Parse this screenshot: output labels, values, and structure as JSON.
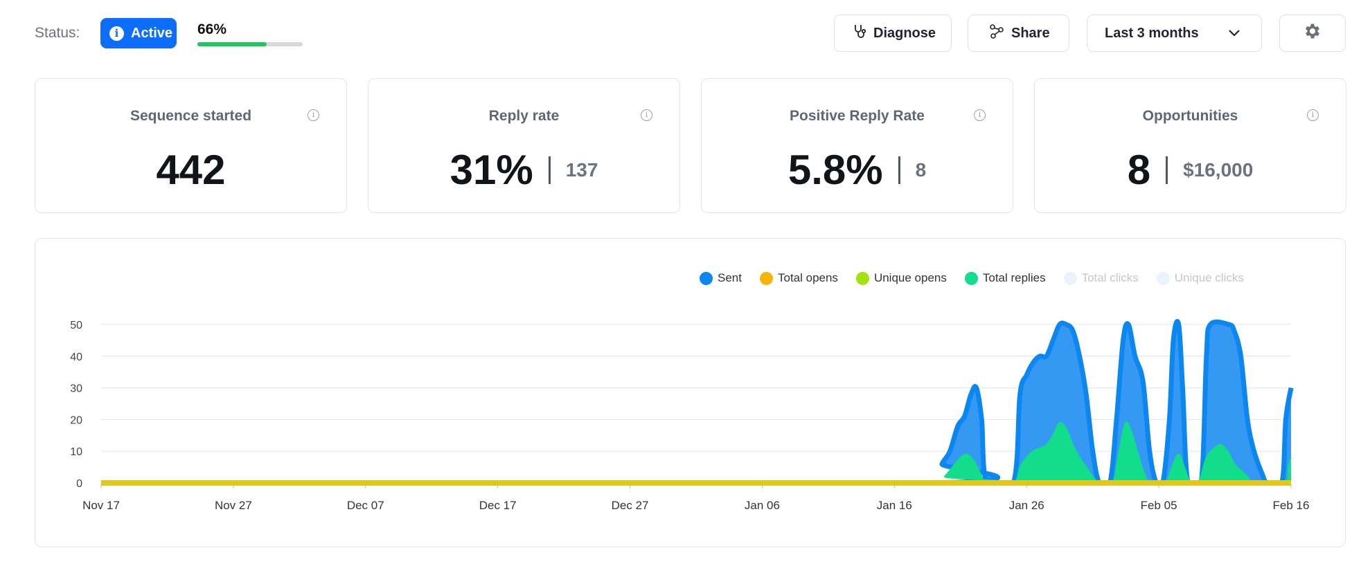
{
  "header": {
    "status_label": "Status:",
    "status_badge": "Active",
    "status_badge_icon": "info-icon",
    "progress_text": "66%",
    "progress_fraction": 0.66,
    "diagnose_label": "Diagnose",
    "share_label": "Share",
    "range_label": "Last 3 months",
    "accent_color": "#0d6efd",
    "progress_color": "#22c55e"
  },
  "cards": [
    {
      "title": "Sequence started",
      "value": "442",
      "sub": ""
    },
    {
      "title": "Reply rate",
      "value": "31%",
      "sub": "137"
    },
    {
      "title": "Positive Reply Rate",
      "value": "5.8%",
      "sub": "8"
    },
    {
      "title": "Opportunities",
      "value": "8",
      "sub": "$16,000"
    }
  ],
  "legend": [
    {
      "label": "Sent",
      "color": "#0d87f0",
      "active": true
    },
    {
      "label": "Total opens",
      "color": "#f5b50a",
      "active": true
    },
    {
      "label": "Unique opens",
      "color": "#a5e10f",
      "active": true
    },
    {
      "label": "Total replies",
      "color": "#12dd8a",
      "active": true
    },
    {
      "label": "Total clicks",
      "color": "#eaf3fb",
      "active": false
    },
    {
      "label": "Unique clicks",
      "color": "#eaf3fb",
      "active": false
    }
  ],
  "chart_data": {
    "type": "area",
    "x_ticks": [
      "Nov 17",
      "Nov 27",
      "Dec 07",
      "Dec 17",
      "Dec 27",
      "Jan 06",
      "Jan 16",
      "Jan 26",
      "Feb 05",
      "Feb 16"
    ],
    "y_ticks": [
      0,
      10,
      20,
      30,
      40,
      50
    ],
    "ylim": [
      0,
      50
    ],
    "xrange_days": [
      0,
      90
    ],
    "grid": true,
    "legend_position": "top-right",
    "series": [
      {
        "name": "Sent",
        "color": "#0d87f0",
        "points": [
          [
            0,
            0
          ],
          [
            63,
            0
          ],
          [
            63.6,
            6
          ],
          [
            64.2,
            10
          ],
          [
            64.8,
            18
          ],
          [
            65.3,
            21
          ],
          [
            65.8,
            28
          ],
          [
            66.2,
            30
          ],
          [
            66.6,
            20
          ],
          [
            67,
            0
          ],
          [
            69,
            0
          ],
          [
            69.5,
            28
          ],
          [
            70,
            34
          ],
          [
            70.5,
            38
          ],
          [
            71,
            40
          ],
          [
            71.5,
            40
          ],
          [
            72,
            45
          ],
          [
            72.5,
            50
          ],
          [
            73,
            50
          ],
          [
            73.5,
            48
          ],
          [
            74,
            40
          ],
          [
            74.5,
            28
          ],
          [
            75,
            10
          ],
          [
            75.5,
            0
          ],
          [
            76.3,
            0
          ],
          [
            76.8,
            20
          ],
          [
            77.3,
            45
          ],
          [
            77.7,
            50
          ],
          [
            78.2,
            40
          ],
          [
            78.8,
            32
          ],
          [
            79.3,
            10
          ],
          [
            79.8,
            0
          ],
          [
            80.3,
            0
          ],
          [
            80.8,
            20
          ],
          [
            81.1,
            45
          ],
          [
            81.5,
            50
          ],
          [
            81.8,
            30
          ],
          [
            82.2,
            0
          ],
          [
            83.2,
            0
          ],
          [
            83.6,
            40
          ],
          [
            83.9,
            50
          ],
          [
            85.3,
            50
          ],
          [
            85.7,
            48
          ],
          [
            86.2,
            40
          ],
          [
            86.7,
            20
          ],
          [
            87.2,
            10
          ],
          [
            87.8,
            3
          ],
          [
            88.2,
            0
          ],
          [
            89.3,
            0
          ],
          [
            89.6,
            20
          ],
          [
            90,
            30
          ]
        ]
      },
      {
        "name": "Total replies",
        "color": "#12dd8a",
        "points": [
          [
            0,
            0
          ],
          [
            63.2,
            0
          ],
          [
            63.8,
            2
          ],
          [
            64.4,
            5
          ],
          [
            65,
            8
          ],
          [
            65.5,
            9
          ],
          [
            66,
            7
          ],
          [
            66.5,
            3
          ],
          [
            67,
            0
          ],
          [
            69,
            0
          ],
          [
            69.5,
            5
          ],
          [
            70,
            8
          ],
          [
            70.5,
            10
          ],
          [
            71,
            11
          ],
          [
            71.5,
            12
          ],
          [
            72,
            15
          ],
          [
            72.5,
            19
          ],
          [
            73,
            17
          ],
          [
            73.5,
            12
          ],
          [
            74,
            8
          ],
          [
            74.5,
            5
          ],
          [
            75,
            2
          ],
          [
            75.5,
            0
          ],
          [
            76.5,
            0
          ],
          [
            77,
            10
          ],
          [
            77.5,
            19
          ],
          [
            78,
            15
          ],
          [
            78.5,
            8
          ],
          [
            79,
            2
          ],
          [
            79.5,
            0
          ],
          [
            80.5,
            0
          ],
          [
            81,
            5
          ],
          [
            81.5,
            9
          ],
          [
            82,
            4
          ],
          [
            82.4,
            0
          ],
          [
            83,
            0
          ],
          [
            83.6,
            8
          ],
          [
            84.2,
            11
          ],
          [
            84.7,
            12
          ],
          [
            85.2,
            10
          ],
          [
            85.7,
            6
          ],
          [
            86.2,
            4
          ],
          [
            86.7,
            2
          ],
          [
            87.2,
            0
          ],
          [
            89.5,
            0
          ],
          [
            89.8,
            5
          ],
          [
            90,
            8
          ]
        ]
      },
      {
        "name": "Total opens",
        "color": "#e0c81a",
        "points": [
          [
            0,
            0
          ],
          [
            90,
            0
          ]
        ]
      }
    ]
  }
}
